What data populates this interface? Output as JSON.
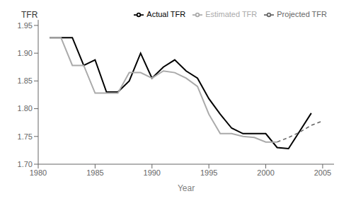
{
  "chart_data": {
    "type": "line",
    "xlabel": "Year",
    "ylabel": "TFR",
    "x": [
      1981,
      1982,
      1983,
      1984,
      1985,
      1986,
      1987,
      1988,
      1989,
      1990,
      1991,
      1992,
      1993,
      1994,
      1995,
      1996,
      1997,
      1998,
      1999,
      2000,
      2001,
      2002,
      2003,
      2004,
      2005
    ],
    "series": [
      {
        "name": "Actual TFR",
        "color": "#000000",
        "line_style": "solid",
        "values": [
          1.928,
          1.928,
          1.928,
          1.878,
          1.888,
          1.83,
          1.83,
          1.85,
          1.9,
          1.855,
          1.875,
          1.888,
          1.868,
          1.855,
          1.818,
          1.79,
          1.765,
          1.755,
          1.755,
          1.755,
          1.73,
          1.728,
          1.76,
          1.792,
          null
        ]
      },
      {
        "name": "Estimated TFR",
        "color": "#aaaaaa",
        "line_style": "solid",
        "values": [
          1.928,
          1.928,
          1.878,
          1.878,
          1.828,
          1.828,
          1.828,
          1.865,
          1.865,
          1.855,
          1.868,
          1.865,
          1.855,
          1.84,
          1.79,
          1.755,
          1.755,
          1.75,
          1.748,
          1.74,
          1.74,
          null,
          null,
          null,
          null
        ]
      },
      {
        "name": "Projected TFR",
        "color": "#666666",
        "line_style": "dashed",
        "values": [
          null,
          null,
          null,
          null,
          null,
          null,
          null,
          null,
          null,
          null,
          null,
          null,
          null,
          null,
          null,
          null,
          null,
          null,
          null,
          null,
          1.74,
          1.748,
          1.758,
          1.77,
          1.778
        ]
      }
    ],
    "xlim": [
      1980,
      2006
    ],
    "xticks": [
      1980,
      1985,
      1990,
      1995,
      2000,
      2005
    ],
    "ylim": [
      1.7,
      1.96
    ],
    "yticks": [
      {
        "value": 1.7,
        "label": "1.70"
      },
      1.75,
      {
        "value": 1.8,
        "label": "1.80"
      },
      1.85,
      {
        "value": 1.9,
        "label": "1.90"
      },
      1.95
    ],
    "grid": false,
    "legend": "upper right"
  }
}
